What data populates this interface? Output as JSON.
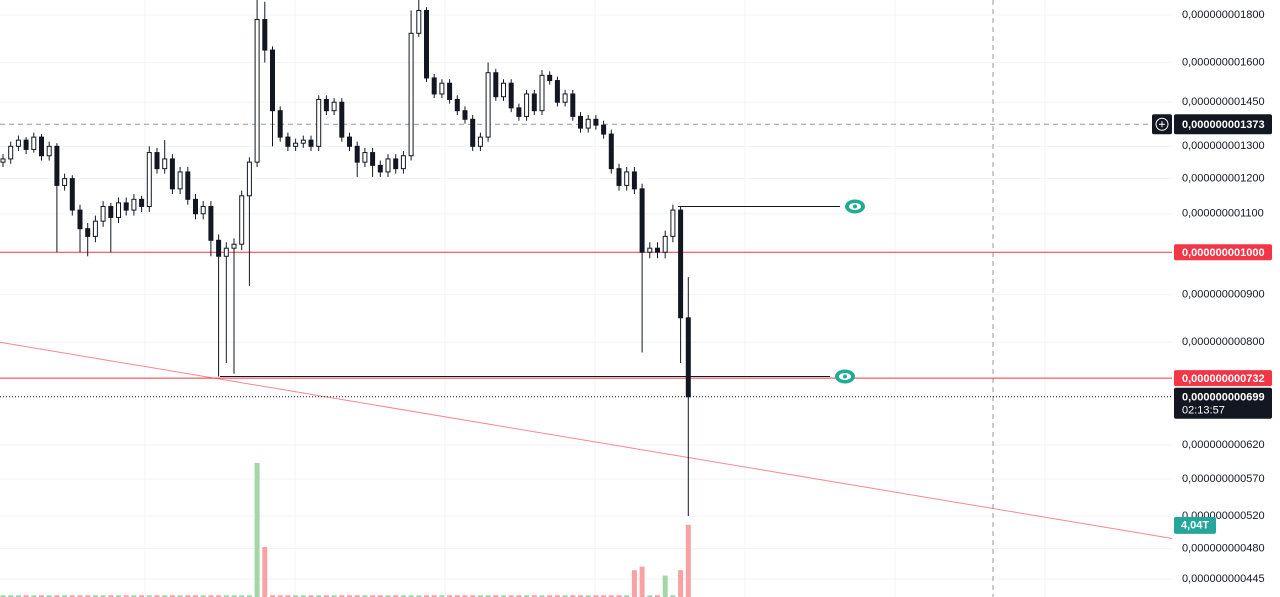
{
  "chart_data": {
    "type": "candlestick",
    "log_scale": true,
    "ylim": [
      4.256e-10,
      1.868e-09
    ],
    "yticks": [
      {
        "value": 1.8e-09,
        "label": "0,000000001800"
      },
      {
        "value": 1.6e-09,
        "label": "0,000000001600"
      },
      {
        "value": 1.45e-09,
        "label": "0,000000001450"
      },
      {
        "value": 1.3e-09,
        "label": "0,000000001300"
      },
      {
        "value": 1.2e-09,
        "label": "0,000000001200"
      },
      {
        "value": 1.1e-09,
        "label": "0,000000001100"
      },
      {
        "value": 9e-10,
        "label": "0,000000000900"
      },
      {
        "value": 8e-10,
        "label": "0,000000000800"
      },
      {
        "value": 6.2e-10,
        "label": "0,000000000620"
      },
      {
        "value": 5.7e-10,
        "label": "0,000000000570"
      },
      {
        "value": 5.2e-10,
        "label": "0,000000000520"
      },
      {
        "value": 4.8e-10,
        "label": "0,000000000480"
      },
      {
        "value": 4.45e-10,
        "label": "0,000000000445"
      }
    ],
    "grid": true,
    "up_color": "#ffffff",
    "down_color": "#131722",
    "ohlc": [
      [
        1.25e-09,
        1.275e-09,
        1.235e-09,
        1.26e-09
      ],
      [
        1.26e-09,
        1.315e-09,
        1.245e-09,
        1.3e-09
      ],
      [
        1.3e-09,
        1.335e-09,
        1.285e-09,
        1.32e-09
      ],
      [
        1.32e-09,
        1.33e-09,
        1.275e-09,
        1.29e-09
      ],
      [
        1.29e-09,
        1.345e-09,
        1.28e-09,
        1.33e-09
      ],
      [
        1.33e-09,
        1.34e-09,
        1.255e-09,
        1.27e-09
      ],
      [
        1.27e-09,
        1.315e-09,
        1.255e-09,
        1.3e-09
      ],
      [
        1.3e-09,
        1.31e-09,
        1e-09,
        1.18e-09
      ],
      [
        1.18e-09,
        1.215e-09,
        1.165e-09,
        1.2e-09
      ],
      [
        1.2e-09,
        1.21e-09,
        1.095e-09,
        1.11e-09
      ],
      [
        1.11e-09,
        1.125e-09,
        1e-09,
        1.06e-09
      ],
      [
        1.06e-09,
        1.075e-09,
        9.9e-10,
        1.04e-09
      ],
      [
        1.04e-09,
        1.095e-09,
        1.025e-09,
        1.08e-09
      ],
      [
        1.08e-09,
        1.135e-09,
        1.065e-09,
        1.12e-09
      ],
      [
        1.12e-09,
        1.13e-09,
        1e-09,
        1.09e-09
      ],
      [
        1.09e-09,
        1.145e-09,
        1.075e-09,
        1.13e-09
      ],
      [
        1.13e-09,
        1.145e-09,
        1.095e-09,
        1.11e-09
      ],
      [
        1.11e-09,
        1.155e-09,
        1.095e-09,
        1.14e-09
      ],
      [
        1.14e-09,
        1.15e-09,
        1.105e-09,
        1.12e-09
      ],
      [
        1.12e-09,
        1.3e-09,
        1.105e-09,
        1.28e-09
      ],
      [
        1.28e-09,
        1.295e-09,
        1.215e-09,
        1.23e-09
      ],
      [
        1.23e-09,
        1.32e-09,
        1.215e-09,
        1.26e-09
      ],
      [
        1.26e-09,
        1.275e-09,
        1.155e-09,
        1.17e-09
      ],
      [
        1.17e-09,
        1.235e-09,
        1.155e-09,
        1.22e-09
      ],
      [
        1.22e-09,
        1.235e-09,
        1.125e-09,
        1.14e-09
      ],
      [
        1.14e-09,
        1.155e-09,
        1.085e-09,
        1.1e-09
      ],
      [
        1.1e-09,
        1.135e-09,
        1.085e-09,
        1.12e-09
      ],
      [
        1.12e-09,
        1.135e-09,
        9.9e-10,
        1.03e-09
      ],
      [
        1.03e-09,
        1.045e-09,
        7.35e-10,
        9.9e-10
      ],
      [
        9.9e-10,
        1.025e-09,
        7.6e-10,
        1.01e-09
      ],
      [
        1.01e-09,
        1.035e-09,
        7.4e-10,
        1.02e-09
      ],
      [
        1.02e-09,
        1.165e-09,
        1.005e-09,
        1.15e-09
      ],
      [
        1.15e-09,
        1.265e-09,
        9.2e-10,
        1.25e-09
      ],
      [
        1.25e-09,
        1.87e-09,
        1.235e-09,
        1.78e-09
      ],
      [
        1.78e-09,
        1.86e-09,
        1.6e-09,
        1.65e-09
      ],
      [
        1.65e-09,
        1.665e-09,
        1.3e-09,
        1.42e-09
      ],
      [
        1.42e-09,
        1.435e-09,
        1.315e-09,
        1.33e-09
      ],
      [
        1.33e-09,
        1.345e-09,
        1.285e-09,
        1.3e-09
      ],
      [
        1.3e-09,
        1.325e-09,
        1.285e-09,
        1.31e-09
      ],
      [
        1.31e-09,
        1.335e-09,
        1.295e-09,
        1.32e-09
      ],
      [
        1.32e-09,
        1.335e-09,
        1.285e-09,
        1.3e-09
      ],
      [
        1.3e-09,
        1.475e-09,
        1.285e-09,
        1.46e-09
      ],
      [
        1.46e-09,
        1.475e-09,
        1.405e-09,
        1.42e-09
      ],
      [
        1.42e-09,
        1.465e-09,
        1.405e-09,
        1.45e-09
      ],
      [
        1.45e-09,
        1.465e-09,
        1.315e-09,
        1.33e-09
      ],
      [
        1.33e-09,
        1.345e-09,
        1.285e-09,
        1.3e-09
      ],
      [
        1.3e-09,
        1.315e-09,
        1.205e-09,
        1.25e-09
      ],
      [
        1.25e-09,
        1.295e-09,
        1.235e-09,
        1.28e-09
      ],
      [
        1.28e-09,
        1.295e-09,
        1.205e-09,
        1.24e-09
      ],
      [
        1.24e-09,
        1.255e-09,
        1.205e-09,
        1.22e-09
      ],
      [
        1.22e-09,
        1.275e-09,
        1.205e-09,
        1.26e-09
      ],
      [
        1.26e-09,
        1.275e-09,
        1.215e-09,
        1.23e-09
      ],
      [
        1.23e-09,
        1.285e-09,
        1.215e-09,
        1.27e-09
      ],
      [
        1.27e-09,
        1.82e-09,
        1.255e-09,
        1.72e-09
      ],
      [
        1.72e-09,
        1.88e-09,
        1.705e-09,
        1.82e-09
      ],
      [
        1.82e-09,
        1.835e-09,
        1.525e-09,
        1.54e-09
      ],
      [
        1.54e-09,
        1.555e-09,
        1.465e-09,
        1.48e-09
      ],
      [
        1.48e-09,
        1.535e-09,
        1.465e-09,
        1.52e-09
      ],
      [
        1.52e-09,
        1.535e-09,
        1.445e-09,
        1.46e-09
      ],
      [
        1.46e-09,
        1.475e-09,
        1.405e-09,
        1.42e-09
      ],
      [
        1.42e-09,
        1.435e-09,
        1.375e-09,
        1.39e-09
      ],
      [
        1.39e-09,
        1.405e-09,
        1.285e-09,
        1.3e-09
      ],
      [
        1.3e-09,
        1.345e-09,
        1.285e-09,
        1.33e-09
      ],
      [
        1.33e-09,
        1.6e-09,
        1.315e-09,
        1.56e-09
      ],
      [
        1.56e-09,
        1.575e-09,
        1.455e-09,
        1.47e-09
      ],
      [
        1.47e-09,
        1.535e-09,
        1.455e-09,
        1.52e-09
      ],
      [
        1.52e-09,
        1.535e-09,
        1.415e-09,
        1.43e-09
      ],
      [
        1.43e-09,
        1.445e-09,
        1.385e-09,
        1.4e-09
      ],
      [
        1.4e-09,
        1.495e-09,
        1.385e-09,
        1.48e-09
      ],
      [
        1.48e-09,
        1.495e-09,
        1.405e-09,
        1.42e-09
      ],
      [
        1.42e-09,
        1.57e-09,
        1.405e-09,
        1.55e-09
      ],
      [
        1.55e-09,
        1.565e-09,
        1.515e-09,
        1.53e-09
      ],
      [
        1.53e-09,
        1.545e-09,
        1.435e-09,
        1.45e-09
      ],
      [
        1.45e-09,
        1.495e-09,
        1.435e-09,
        1.48e-09
      ],
      [
        1.48e-09,
        1.495e-09,
        1.385e-09,
        1.4e-09
      ],
      [
        1.4e-09,
        1.415e-09,
        1.345e-09,
        1.36e-09
      ],
      [
        1.36e-09,
        1.405e-09,
        1.345e-09,
        1.39e-09
      ],
      [
        1.39e-09,
        1.405e-09,
        1.355e-09,
        1.37e-09
      ],
      [
        1.37e-09,
        1.385e-09,
        1.325e-09,
        1.34e-09
      ],
      [
        1.34e-09,
        1.355e-09,
        1.215e-09,
        1.23e-09
      ],
      [
        1.23e-09,
        1.245e-09,
        1.165e-09,
        1.18e-09
      ],
      [
        1.18e-09,
        1.235e-09,
        1.165e-09,
        1.22e-09
      ],
      [
        1.22e-09,
        1.235e-09,
        1.155e-09,
        1.17e-09
      ],
      [
        1.17e-09,
        1.185e-09,
        7.8e-10,
        1e-09
      ],
      [
        1e-09,
        1.025e-09,
        9.85e-10,
        1.01e-09
      ],
      [
        1.01e-09,
        1.025e-09,
        9.85e-10,
        1e-09
      ],
      [
        1e-09,
        1.055e-09,
        9.85e-10,
        1.04e-09
      ],
      [
        1.04e-09,
        1.125e-09,
        1.025e-09,
        1.11e-09
      ],
      [
        1.11e-09,
        1.12e-09,
        7.6e-10,
        8.5e-10
      ],
      [
        8.5e-10,
        9.4e-10,
        5.2e-10,
        6.99e-10
      ]
    ],
    "volume": {
      "up_color": "#a5d6a7",
      "down_color": "#faa1a4",
      "values": [
        100000000000.0,
        100000000000.0,
        100000000000.0,
        100000000000.0,
        100000000000.0,
        100000000000.0,
        100000000000.0,
        100000000000.0,
        100000000000.0,
        100000000000.0,
        100000000000.0,
        100000000000.0,
        100000000000.0,
        100000000000.0,
        100000000000.0,
        100000000000.0,
        100000000000.0,
        100000000000.0,
        100000000000.0,
        100000000000.0,
        100000000000.0,
        100000000000.0,
        100000000000.0,
        100000000000.0,
        100000000000.0,
        100000000000.0,
        100000000000.0,
        100000000000.0,
        100000000000.0,
        100000000000.0,
        100000000000.0,
        100000000000.0,
        100000000000.0,
        7500000000000.0,
        2800000000000.0,
        100000000000.0,
        100000000000.0,
        100000000000.0,
        100000000000.0,
        100000000000.0,
        100000000000.0,
        100000000000.0,
        100000000000.0,
        100000000000.0,
        100000000000.0,
        100000000000.0,
        100000000000.0,
        100000000000.0,
        100000000000.0,
        100000000000.0,
        100000000000.0,
        100000000000.0,
        100000000000.0,
        100000000000.0,
        100000000000.0,
        100000000000.0,
        100000000000.0,
        100000000000.0,
        100000000000.0,
        100000000000.0,
        100000000000.0,
        100000000000.0,
        100000000000.0,
        100000000000.0,
        100000000000.0,
        100000000000.0,
        100000000000.0,
        100000000000.0,
        100000000000.0,
        100000000000.0,
        100000000000.0,
        100000000000.0,
        100000000000.0,
        100000000000.0,
        100000000000.0,
        100000000000.0,
        100000000000.0,
        100000000000.0,
        100000000000.0,
        100000000000.0,
        100000000000.0,
        100000000000.0,
        1500000000000.0,
        1700000000000.0,
        100000000000.0,
        100000000000.0,
        1200000000000.0,
        100000000000.0,
        1500000000000.0,
        4040000000000.0
      ],
      "last": {
        "value": 4040000000000.0,
        "label": "4,04T"
      }
    },
    "levels": [
      {
        "value": 1e-09,
        "label": "0,000000001000",
        "color": "#f23645"
      },
      {
        "value": 7.32e-10,
        "label": "0,000000000732",
        "color": "#f23645"
      }
    ],
    "ranges": [
      {
        "value": 1.12e-09,
        "color": "#131722"
      },
      {
        "value": 7.35e-10,
        "color": "#131722"
      }
    ],
    "trendline": {
      "values": [
        8e-10,
        4.92e-10
      ],
      "color": "#f23645"
    },
    "crosshair": {
      "value": 1.373e-09,
      "label": "0,000000001373"
    },
    "last_price": {
      "value": 6.99e-10,
      "label": "0,000000000699",
      "countdown": "02:13:57"
    },
    "marker_color": "#22ab94"
  }
}
